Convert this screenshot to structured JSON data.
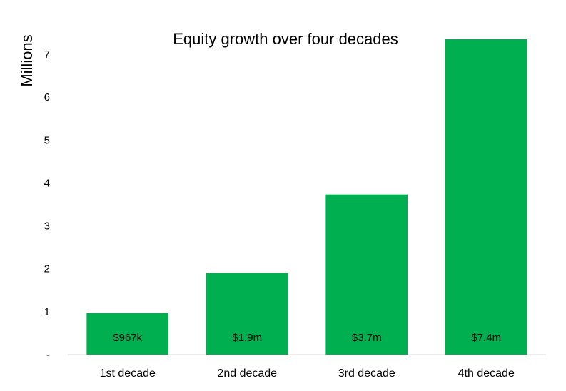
{
  "chart_data": {
    "type": "bar",
    "title": "Equity growth over four decades",
    "xlabel": "",
    "ylabel": "Millions",
    "categories": [
      "1st decade",
      "2nd decade",
      "3rd decade",
      "4th decade"
    ],
    "values": [
      0.967,
      1.9,
      3.73,
      7.35
    ],
    "data_labels": [
      "$967k",
      "$1.9m",
      "$3.7m",
      "$7.4m"
    ],
    "yticks": [
      0,
      1,
      2,
      3,
      4,
      5,
      6,
      7
    ],
    "ytick_labels": [
      "-",
      "1",
      "2",
      "3",
      "4",
      "5",
      "6",
      "7"
    ],
    "ylim": [
      0,
      7
    ],
    "grid": false,
    "bar_color": "#00b050"
  }
}
